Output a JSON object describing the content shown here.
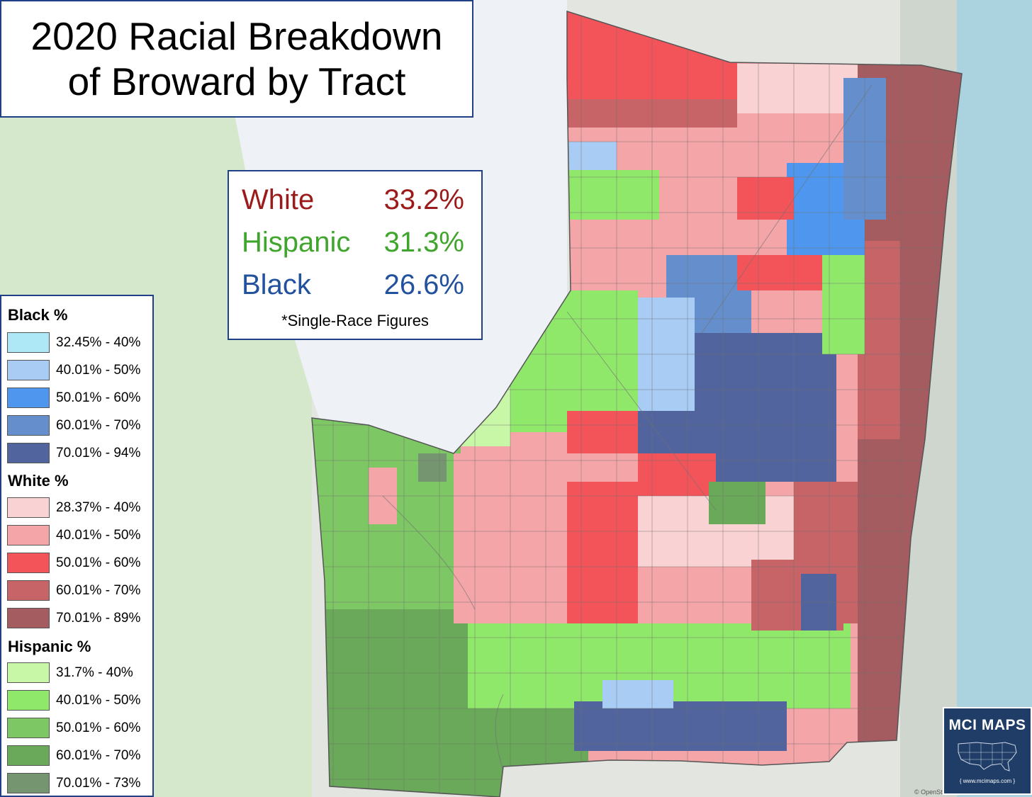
{
  "title": {
    "line1": "2020 Racial Breakdown",
    "line2": "of Broward by Tract"
  },
  "stats": {
    "rows": [
      {
        "label": "White",
        "value": "33.2%",
        "color": "#9b1b1b"
      },
      {
        "label": "Hispanic",
        "value": "31.3%",
        "color": "#3fa52c"
      },
      {
        "label": "Black",
        "value": "26.6%",
        "color": "#22519e"
      }
    ],
    "note": "*Single-Race Figures"
  },
  "legend": {
    "groups": [
      {
        "name": "Black  %",
        "items": [
          {
            "range": "32.45% - 40%",
            "color": "#aee8f7"
          },
          {
            "range": "40.01% - 50%",
            "color": "#a9ccf4"
          },
          {
            "range": "50.01% - 60%",
            "color": "#4f97ee"
          },
          {
            "range": "60.01% - 70%",
            "color": "#658fcc"
          },
          {
            "range": "70.01% - 94%",
            "color": "#52649e"
          }
        ]
      },
      {
        "name": "White  %",
        "items": [
          {
            "range": "28.37% - 40%",
            "color": "#f9d2d4"
          },
          {
            "range": "40.01% - 50%",
            "color": "#f4a5a8"
          },
          {
            "range": "50.01% - 60%",
            "color": "#f2545a"
          },
          {
            "range": "60.01% - 70%",
            "color": "#c76468"
          },
          {
            "range": "70.01% - 89%",
            "color": "#a45c60"
          }
        ]
      },
      {
        "name": "Hispanic  %",
        "items": [
          {
            "range": "31.7% - 40%",
            "color": "#c9f7a8"
          },
          {
            "range": "40.01% - 50%",
            "color": "#90e86a"
          },
          {
            "range": "50.01% - 60%",
            "color": "#7ec765"
          },
          {
            "range": "60.01% - 70%",
            "color": "#6aa95a"
          },
          {
            "range": "70.01% - 73%",
            "color": "#759470"
          }
        ]
      }
    ]
  },
  "brand": {
    "name": "MCI MAPS",
    "url": "www.mcimaps.com"
  },
  "attribution": "© OpenStr",
  "base_colors": {
    "land": "#dfe6dc",
    "conservation_area": "#d7e8cc",
    "water_area": "#edf1f7",
    "ocean": "#aad3df"
  }
}
